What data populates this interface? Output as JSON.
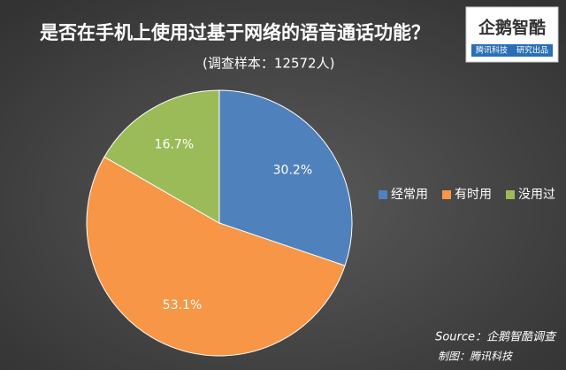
{
  "chart_data": {
    "type": "pie",
    "title": "是否在手机上使用过基于网络的语音通话功能？",
    "subtitle": "(调查样本：12572人)",
    "categories": [
      "经常用",
      "有时用",
      "没用过"
    ],
    "values": [
      30.2,
      53.1,
      16.7
    ],
    "value_labels": [
      "30.2%",
      "53.1%",
      "16.7%"
    ],
    "colors": [
      "#4f81bd",
      "#f79646",
      "#9bbb59"
    ],
    "legend": "right",
    "source": "Source：企鹅智酷调查",
    "credit": "制图：腾讯科技"
  },
  "logo": {
    "name": "企鹅智酷",
    "tagline": [
      "腾讯科技",
      "研究出品"
    ]
  }
}
